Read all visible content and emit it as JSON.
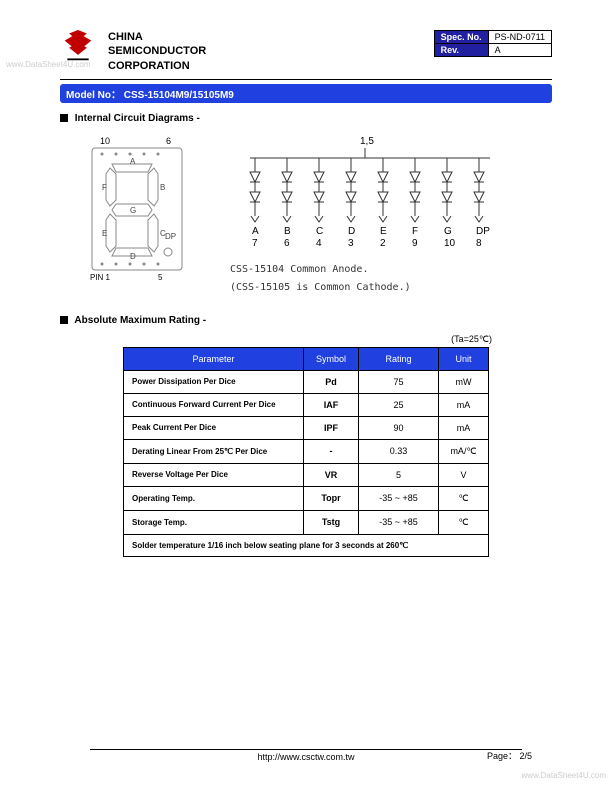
{
  "watermark": {
    "left": "www.DataSheet4U.com",
    "right": "www.DataSheet4U.com"
  },
  "header": {
    "company_line1": "CHINA",
    "company_line2": "SEMICONDUCTOR",
    "company_line3": "CORPORATION",
    "spec_no_label": "Spec. No.",
    "spec_no_value": "PS-ND-0711",
    "rev_label": "Rev.",
    "rev_value": "A"
  },
  "model": {
    "label": "Model No：",
    "value": "CSS-15104M9/15105M9"
  },
  "sections": {
    "diagrams_title": "Internal Circuit Diagrams -",
    "rating_title": "Absolute Maximum Rating -"
  },
  "seven_seg": {
    "top_pins_left": "10",
    "top_pins_right": "6",
    "bottom_pin_label": "PIN 1",
    "bottom_pin_right": "5",
    "segments": {
      "a": "A",
      "b": "B",
      "c": "C",
      "d": "D",
      "e": "E",
      "f": "F",
      "g": "G",
      "dp": "DP"
    }
  },
  "circuit": {
    "top_label": "1,5",
    "pin_labels": [
      "A",
      "B",
      "C",
      "D",
      "E",
      "F",
      "G",
      "DP"
    ],
    "pin_nums": [
      "7",
      "6",
      "4",
      "3",
      "2",
      "9",
      "10",
      "8"
    ],
    "note1": "CSS-15104 Common Anode.",
    "note2": "(CSS-15105 is Common Cathode.)"
  },
  "ta_label": "(Ta=25℃)",
  "rating_table": {
    "headers": [
      "Parameter",
      "Symbol",
      "Rating",
      "Unit"
    ],
    "col_widths": [
      "180px",
      "55px",
      "80px",
      "50px"
    ],
    "rows": [
      {
        "param": "Power Dissipation Per Dice",
        "symbol": "Pd",
        "rating": "75",
        "unit": "mW"
      },
      {
        "param": "Continuous Forward Current Per Dice",
        "symbol": "IAF",
        "rating": "25",
        "unit": "mA"
      },
      {
        "param": "Peak Current Per Dice",
        "symbol": "IPF",
        "rating": "90",
        "unit": "mA"
      },
      {
        "param": "Derating Linear From 25℃ Per Dice",
        "symbol": "-",
        "rating": "0.33",
        "unit": "mA/℃"
      },
      {
        "param": "Reverse Voltage Per Dice",
        "symbol": "VR",
        "rating": "5",
        "unit": "V"
      },
      {
        "param": "Operating Temp.",
        "symbol": "Topr",
        "rating": "-35 ~ +85",
        "unit": "℃"
      },
      {
        "param": "Storage Temp.",
        "symbol": "Tstg",
        "rating": "-35 ~ +85",
        "unit": "℃"
      }
    ],
    "note": "Solder temperature 1/16 inch below seating plane for 3 seconds at 260℃"
  },
  "footer": {
    "url": "http://www.csctw.com.tw",
    "page_label": "Page：",
    "page_value": "2/5"
  },
  "colors": {
    "header_blue": "#2040e0",
    "dark_blue": "#2020a0",
    "logo_red": "#c00000"
  }
}
